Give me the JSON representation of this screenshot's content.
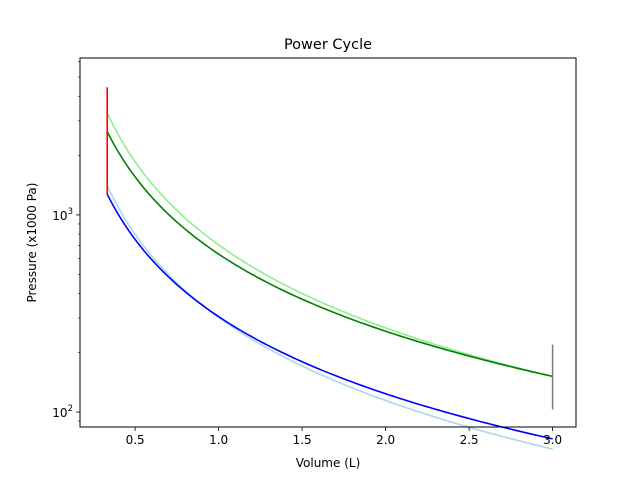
{
  "chart_data": {
    "type": "line",
    "title": "Power Cycle",
    "xlabel": "Volume (L)",
    "ylabel": "Pressure (x1000 Pa)",
    "xlim": [
      0.17,
      3.14
    ],
    "ylim": [
      84,
      6250
    ],
    "yscale": "log",
    "grid": false,
    "x_ticks": [
      {
        "value": 0.5,
        "label": "0.5"
      },
      {
        "value": 1.0,
        "label": "1.0"
      },
      {
        "value": 1.5,
        "label": "1.5"
      },
      {
        "value": 2.0,
        "label": "2.0"
      },
      {
        "value": 2.5,
        "label": "2.5"
      },
      {
        "value": 3.0,
        "label": "3.0"
      }
    ],
    "y_ticks": [
      {
        "value": 100,
        "base": "10",
        "exp": "2"
      },
      {
        "value": 1000,
        "base": "10",
        "exp": "3"
      }
    ],
    "series": [
      {
        "type": "curve",
        "color": "#add8e6",
        "v_start": 0.333,
        "v_end": 3.0,
        "k": 302,
        "gamma": 1.4
      },
      {
        "type": "curve",
        "color": "#0000ff",
        "v_start": 0.333,
        "v_end": 3.0,
        "k": 305,
        "gamma": 1.3
      },
      {
        "type": "curve",
        "color": "#90ee90",
        "v_start": 0.333,
        "v_end": 3.0,
        "k": 705,
        "gamma": 1.4
      },
      {
        "type": "curve",
        "color": "#008000",
        "v_start": 0.333,
        "v_end": 3.0,
        "k": 633,
        "gamma": 1.3
      },
      {
        "type": "segment",
        "color": "#ff0000",
        "x": [
          0.333,
          0.333
        ],
        "y": [
          1270,
          4440
        ]
      },
      {
        "type": "segment",
        "color": "#808080",
        "x": [
          3.0,
          3.0
        ],
        "y": [
          103,
          220
        ]
      }
    ]
  }
}
